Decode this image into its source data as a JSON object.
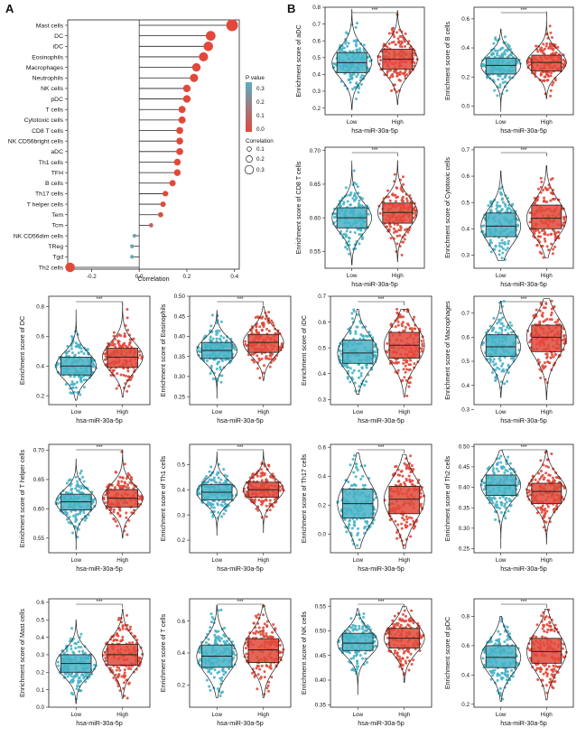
{
  "panels": {
    "a": "A",
    "b": "B"
  },
  "colors": {
    "low": "#47b2c6",
    "high": "#e0493a",
    "p_low": "#e0493a",
    "p_high": "#5aaec2"
  },
  "lollipop": {
    "xlabel": "Correlation",
    "xticks": [
      "-0.2",
      "0.0",
      "0.2",
      "0.4"
    ],
    "legend_p_title": "P value",
    "legend_p_ticks": [
      "0.3",
      "0.2",
      "0.1",
      "0.0"
    ],
    "legend_size_title": "Correlation",
    "legend_size_labels": [
      "0.1",
      "0.2",
      "0.3"
    ]
  },
  "chart_data": [
    {
      "type": "lollipop",
      "xlabel": "Correlation",
      "xlim": [
        -0.3,
        0.42
      ],
      "categories": [
        "Mast cells",
        "DC",
        "iDC",
        "Eosinophils",
        "Macrophages",
        "Neutrophils",
        "NK cells",
        "pDC",
        "T cells",
        "Cytotoxic cells",
        "CD8 T cells",
        "NK CD56bright cells",
        "aDC",
        "Th1 cells",
        "TFH",
        "B cells",
        "Th17 cells",
        "T helper cells",
        "Tem",
        "Tcm",
        "NK CD56dim cells",
        "TReg",
        "Tgd",
        "Th2 cells"
      ],
      "values": [
        0.39,
        0.3,
        0.29,
        0.27,
        0.24,
        0.23,
        0.2,
        0.2,
        0.18,
        0.18,
        0.17,
        0.17,
        0.17,
        0.16,
        0.16,
        0.14,
        0.11,
        0.1,
        0.09,
        0.05,
        -0.02,
        -0.03,
        -0.03,
        -0.29
      ],
      "p_values": [
        0,
        0,
        0,
        0,
        0,
        0,
        0,
        0,
        0,
        0,
        0,
        0,
        0,
        0,
        0,
        0,
        0.002,
        0.004,
        0.02,
        0.1,
        0.3,
        0.32,
        0.33,
        0
      ]
    },
    {
      "type": "violin-box",
      "ylabel": "Enrichment score of aDC",
      "xlabel": "hsa-miR-30a-5p",
      "categories": [
        "Low",
        "High"
      ],
      "yticks": [
        "0.2",
        "0.3",
        "0.4",
        "0.5",
        "0.6",
        "0.7",
        "0.8"
      ],
      "ylim": [
        0.16,
        0.8
      ],
      "median": [
        0.47,
        0.49
      ],
      "q1": [
        0.41,
        0.43
      ],
      "q3": [
        0.53,
        0.55
      ],
      "min": [
        0.19,
        0.22
      ],
      "max": [
        0.79,
        0.78
      ],
      "significance": "***"
    },
    {
      "type": "violin-box",
      "ylabel": "Enrichment score of B cells",
      "xlabel": "hsa-miR-30a-5p",
      "categories": [
        "Low",
        "High"
      ],
      "yticks": [
        "0.0",
        "0.2",
        "0.4",
        "0.6"
      ],
      "ylim": [
        -0.06,
        0.68
      ],
      "median": [
        0.28,
        0.3
      ],
      "q1": [
        0.22,
        0.24
      ],
      "q3": [
        0.33,
        0.35
      ],
      "min": [
        -0.04,
        0.05
      ],
      "max": [
        0.53,
        0.65
      ],
      "significance": "***"
    },
    {
      "type": "violin-box",
      "ylabel": "Enrichment score of CD8 T cells",
      "xlabel": "hsa-miR-30a-5p",
      "categories": [
        "Low",
        "High"
      ],
      "yticks": [
        "0.55",
        "0.60",
        "0.65",
        "0.70"
      ],
      "ylim": [
        0.525,
        0.705
      ],
      "median": [
        0.6,
        0.608
      ],
      "q1": [
        0.585,
        0.592
      ],
      "q3": [
        0.615,
        0.622
      ],
      "min": [
        0.53,
        0.535
      ],
      "max": [
        0.685,
        0.685
      ],
      "significance": "***"
    },
    {
      "type": "violin-box",
      "ylabel": "Enrichment score of Cytotoxic cells",
      "xlabel": "hsa-miR-30a-5p",
      "categories": [
        "Low",
        "High"
      ],
      "yticks": [
        "0.3",
        "0.4",
        "0.5",
        "0.6",
        "0.7"
      ],
      "ylim": [
        0.25,
        0.71
      ],
      "median": [
        0.41,
        0.44
      ],
      "q1": [
        0.37,
        0.4
      ],
      "q3": [
        0.46,
        0.49
      ],
      "min": [
        0.28,
        0.29
      ],
      "max": [
        0.62,
        0.64
      ],
      "significance": "***"
    },
    {
      "type": "violin-box",
      "ylabel": "Enrichment score of DC",
      "xlabel": "hsa-miR-30a-5p",
      "categories": [
        "Low",
        "High"
      ],
      "yticks": [
        "0.2",
        "0.4",
        "0.6",
        "0.8"
      ],
      "ylim": [
        0.14,
        0.87
      ],
      "median": [
        0.4,
        0.46
      ],
      "q1": [
        0.34,
        0.39
      ],
      "q3": [
        0.46,
        0.52
      ],
      "min": [
        0.17,
        0.19
      ],
      "max": [
        0.78,
        0.83
      ],
      "significance": "***"
    },
    {
      "type": "violin-box",
      "ylabel": "Enrichment score of Eosinophils",
      "xlabel": "hsa-miR-30a-5p",
      "categories": [
        "Low",
        "High"
      ],
      "yticks": [
        "0.25",
        "0.30",
        "0.35",
        "0.40",
        "0.45",
        "0.50"
      ],
      "ylim": [
        0.23,
        0.5
      ],
      "median": [
        0.365,
        0.385
      ],
      "q1": [
        0.345,
        0.36
      ],
      "q3": [
        0.385,
        0.405
      ],
      "min": [
        0.245,
        0.29
      ],
      "max": [
        0.465,
        0.475
      ],
      "significance": "***"
    },
    {
      "type": "violin-box",
      "ylabel": "Enrichment score of iDC",
      "xlabel": "hsa-miR-30a-5p",
      "categories": [
        "Low",
        "High"
      ],
      "yticks": [
        "0.3",
        "0.4",
        "0.5",
        "0.6",
        "0.7"
      ],
      "ylim": [
        0.28,
        0.7
      ],
      "median": [
        0.48,
        0.51
      ],
      "q1": [
        0.44,
        0.46
      ],
      "q3": [
        0.53,
        0.56
      ],
      "min": [
        0.32,
        0.31
      ],
      "max": [
        0.65,
        0.65
      ],
      "significance": "***"
    },
    {
      "type": "violin-box",
      "ylabel": "Enrichment score of Macrophages",
      "xlabel": "hsa-miR-30a-5p",
      "categories": [
        "Low",
        "High"
      ],
      "yticks": [
        "0.3",
        "0.4",
        "0.5",
        "0.6",
        "0.7"
      ],
      "ylim": [
        0.32,
        0.77
      ],
      "median": [
        0.56,
        0.6
      ],
      "q1": [
        0.52,
        0.54
      ],
      "q3": [
        0.61,
        0.65
      ],
      "min": [
        0.35,
        0.34
      ],
      "max": [
        0.75,
        0.76
      ],
      "significance": "***"
    },
    {
      "type": "violin-box",
      "ylabel": "Enrichment score of T helper cells",
      "xlabel": "hsa-miR-30a-5p",
      "categories": [
        "Low",
        "High"
      ],
      "yticks": [
        "0.55",
        "0.60",
        "0.65",
        "0.70"
      ],
      "ylim": [
        0.525,
        0.71
      ],
      "median": [
        0.612,
        0.618
      ],
      "q1": [
        0.598,
        0.603
      ],
      "q3": [
        0.625,
        0.633
      ],
      "min": [
        0.53,
        0.55
      ],
      "max": [
        0.685,
        0.7
      ],
      "significance": "***"
    },
    {
      "type": "violin-box",
      "ylabel": "Enrichment score of Th1 cells",
      "xlabel": "hsa-miR-30a-5p",
      "categories": [
        "Low",
        "High"
      ],
      "yticks": [
        "0.2",
        "0.3",
        "0.4",
        "0.5"
      ],
      "ylim": [
        0.15,
        0.58
      ],
      "median": [
        0.39,
        0.4
      ],
      "q1": [
        0.36,
        0.37
      ],
      "q3": [
        0.42,
        0.43
      ],
      "min": [
        0.22,
        0.23
      ],
      "max": [
        0.55,
        0.55
      ],
      "significance": "***"
    },
    {
      "type": "violin-box",
      "ylabel": "Enrichment score of Th17 cells",
      "xlabel": "hsa-miR-30a-5p",
      "categories": [
        "Low",
        "High"
      ],
      "yticks": [
        "0.0",
        "0.2",
        "0.4",
        "0.6"
      ],
      "ylim": [
        -0.13,
        0.62
      ],
      "median": [
        0.21,
        0.24
      ],
      "q1": [
        0.11,
        0.14
      ],
      "q3": [
        0.31,
        0.33
      ],
      "min": [
        -0.1,
        -0.1
      ],
      "max": [
        0.56,
        0.55
      ],
      "significance": "***"
    },
    {
      "type": "violin-box",
      "ylabel": "Enrichment score of Th2 cells",
      "xlabel": "hsa-miR-30a-5p",
      "categories": [
        "Low",
        "High"
      ],
      "yticks": [
        "0.25",
        "0.30",
        "0.35",
        "0.40",
        "0.45",
        "0.50"
      ],
      "ylim": [
        0.24,
        0.505
      ],
      "median": [
        0.405,
        0.39
      ],
      "q1": [
        0.38,
        0.36
      ],
      "q3": [
        0.43,
        0.41
      ],
      "min": [
        0.25,
        0.26
      ],
      "max": [
        0.49,
        0.49
      ],
      "significance": "***"
    },
    {
      "type": "violin-box",
      "ylabel": "Enrichment score of Mast cells",
      "xlabel": "hsa-miR-30a-5p",
      "categories": [
        "Low",
        "High"
      ],
      "yticks": [
        "0.0",
        "0.1",
        "0.2",
        "0.3",
        "0.4",
        "0.5",
        "0.6"
      ],
      "ylim": [
        0.0,
        0.62
      ],
      "median": [
        0.25,
        0.3
      ],
      "q1": [
        0.2,
        0.24
      ],
      "q3": [
        0.3,
        0.36
      ],
      "min": [
        0.02,
        0.05
      ],
      "max": [
        0.5,
        0.56
      ],
      "significance": "***"
    },
    {
      "type": "violin-box",
      "ylabel": "Enrichment score of T cells",
      "xlabel": "hsa-miR-30a-5p",
      "categories": [
        "Low",
        "High"
      ],
      "yticks": [
        "0.2",
        "0.4",
        "0.6"
      ],
      "ylim": [
        0.06,
        0.74
      ],
      "median": [
        0.38,
        0.42
      ],
      "q1": [
        0.31,
        0.34
      ],
      "q3": [
        0.45,
        0.49
      ],
      "min": [
        0.12,
        0.12
      ],
      "max": [
        0.7,
        0.7
      ],
      "significance": "***"
    },
    {
      "type": "violin-box",
      "ylabel": "Enrichment score of NK cells",
      "xlabel": "hsa-miR-30a-5p",
      "categories": [
        "Low",
        "High"
      ],
      "yticks": [
        "0.35",
        "0.40",
        "0.45",
        "0.50",
        "0.55"
      ],
      "ylim": [
        0.345,
        0.565
      ],
      "median": [
        0.475,
        0.485
      ],
      "q1": [
        0.46,
        0.465
      ],
      "q3": [
        0.495,
        0.505
      ],
      "min": [
        0.37,
        0.395
      ],
      "max": [
        0.545,
        0.55
      ],
      "significance": "***"
    },
    {
      "type": "violin-box",
      "ylabel": "Enrichment score of pDC",
      "xlabel": "hsa-miR-30a-5p",
      "categories": [
        "Low",
        "High"
      ],
      "yticks": [
        "0.2",
        "0.4",
        "0.6",
        "0.8"
      ],
      "ylim": [
        0.18,
        0.92
      ],
      "median": [
        0.52,
        0.56
      ],
      "q1": [
        0.45,
        0.48
      ],
      "q3": [
        0.6,
        0.65
      ],
      "min": [
        0.22,
        0.23
      ],
      "max": [
        0.8,
        0.85
      ],
      "significance": "***"
    }
  ]
}
